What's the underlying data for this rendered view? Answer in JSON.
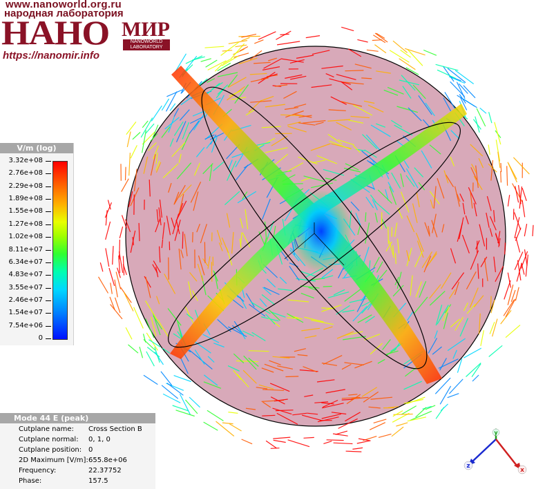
{
  "logo": {
    "url_top": "www.nanoworld.org.ru",
    "subtitle": "народная лаборатория",
    "main": "НАНО",
    "mir": "МИР",
    "badge": "NANOWORLD LABORATORY",
    "url_bottom": "https://nanomir.info"
  },
  "legend": {
    "title": "V/m (log)",
    "ticks": [
      "3.32e+08",
      "2.76e+08",
      "2.29e+08",
      "1.89e+08",
      "1.55e+08",
      "1.27e+08",
      "1.02e+08",
      "8.11e+07",
      "6.34e+07",
      "4.83e+07",
      "3.55e+07",
      "2.46e+07",
      "1.54e+07",
      "7.54e+06",
      "0"
    ],
    "colors": [
      "#ff0000",
      "#ff5a00",
      "#ffb000",
      "#e8ff00",
      "#30ff30",
      "#00ffb0",
      "#00d8ff",
      "#0088ff",
      "#0010ff"
    ]
  },
  "info": {
    "title": "Mode 44 E (peak)",
    "rows": [
      {
        "label": "Cutplane name:",
        "value": "Cross Section B"
      },
      {
        "label": "Cutplane normal:",
        "value": "0, 1, 0"
      },
      {
        "label": "Cutplane position:",
        "value": "0"
      },
      {
        "label": "2D Maximum [V/m]:",
        "value": "655.8e+06"
      },
      {
        "label": "Frequency:",
        "value": "22.37752"
      },
      {
        "label": "Phase:",
        "value": "157.5"
      }
    ]
  },
  "axes": {
    "z": "z",
    "x": "x",
    "y": "y"
  },
  "visualization": {
    "sphere_fill": "#d8a9b9",
    "outline": "#000000"
  }
}
